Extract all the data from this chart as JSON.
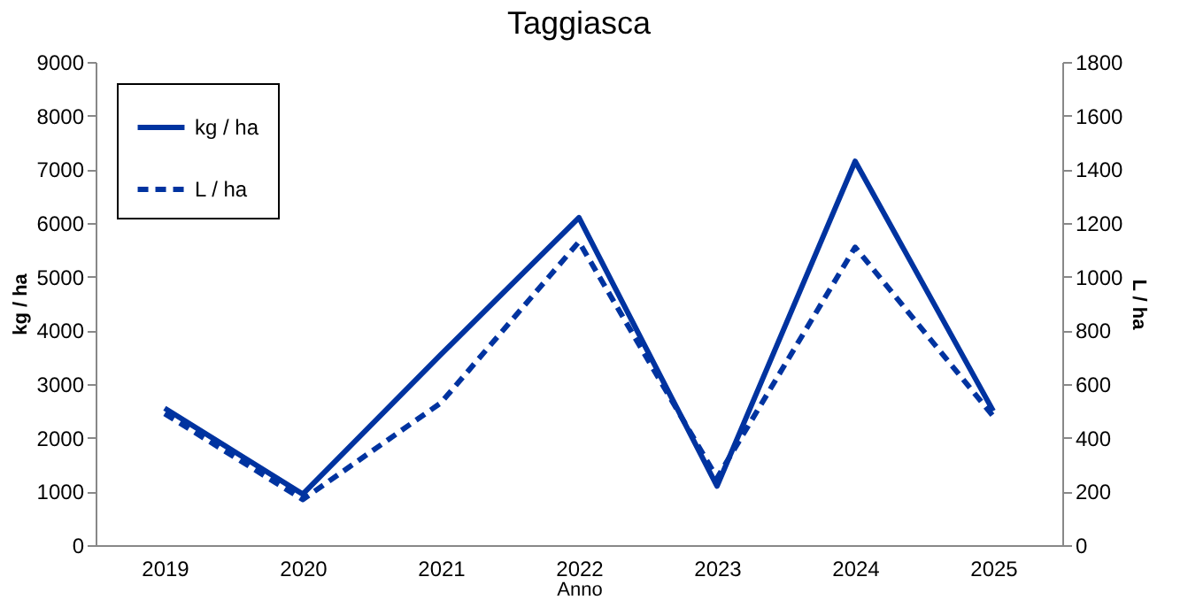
{
  "chart_data": {
    "type": "line",
    "title": "Taggiasca",
    "xlabel": "Anno",
    "ylabel": "kg / ha",
    "y2label": "L / ha",
    "categories": [
      "2019",
      "2020",
      "2021",
      "2022",
      "2023",
      "2024",
      "2025"
    ],
    "series": [
      {
        "name": "kg / ha",
        "color": "#0033a0",
        "line_style": "solid",
        "values": [
          2550,
          950,
          3550,
          6100,
          1100,
          7150,
          2500
        ]
      },
      {
        "name": "L / ha",
        "color": "#0033a0",
        "line_style": "dashed",
        "axis": "y2",
        "values": [
          490,
          170,
          530,
          1130,
          250,
          1110,
          480
        ]
      }
    ],
    "ylim": [
      0,
      9000
    ],
    "yticks": [
      0,
      1000,
      2000,
      3000,
      4000,
      5000,
      6000,
      7000,
      8000,
      9000
    ],
    "y2lim": [
      0,
      1800
    ],
    "y2ticks": [
      0,
      200,
      400,
      600,
      800,
      1000,
      1200,
      1400,
      1600,
      1800
    ],
    "grid": false,
    "legend": "top left"
  }
}
